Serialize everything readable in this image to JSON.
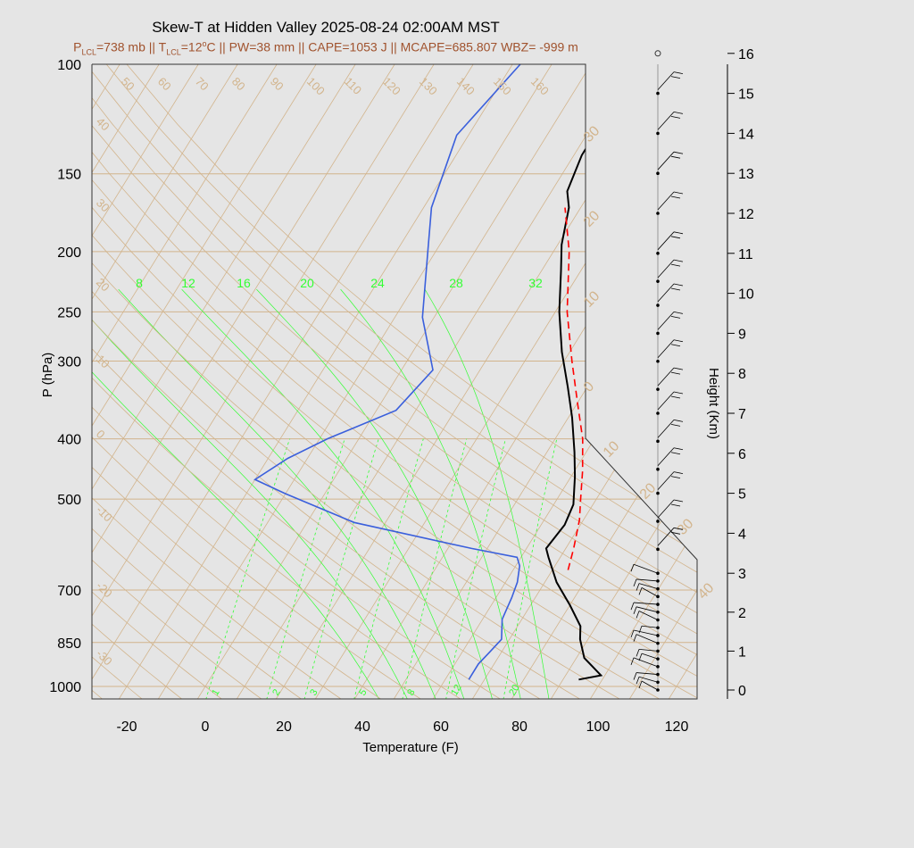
{
  "title": "Skew-T at Hidden Valley 2025-08-24 02:00AM MST",
  "subtitle": {
    "p_lcl_prefix": "P",
    "p_lcl_sub": "LCL",
    "p_lcl_val": "=738 mb || T",
    "t_lcl_sub": "LCL",
    "t_lcl_val": "=12",
    "t_lcl_sup": "o",
    "rest": "C || PW=38 mm || CAPE=1053 J || MCAPE=685.807 WBZ= -999 m"
  },
  "colors": {
    "temperature": "#000000",
    "dewpoint": "#3a5fdc",
    "parcel": "#ff0000",
    "isotherm": "#d2b48c",
    "mixing_ratio": "#33ff33",
    "background": "#e5e5e5"
  },
  "chart_data": {
    "type": "line",
    "chart_kind": "skew-t",
    "xlabel": "Temperature (F)",
    "ylabel": "P (hPa)",
    "y2label": "Height (Km)",
    "xlim": [
      -28,
      125
    ],
    "ylim": [
      1050,
      100
    ],
    "y_scale": "log",
    "x_ticks": [
      -20,
      0,
      20,
      40,
      60,
      80,
      100,
      120
    ],
    "x_tick_labels": [
      "-20",
      "0",
      "20",
      "40",
      "60",
      "80",
      "100",
      "120"
    ],
    "y_ticks": [
      100,
      150,
      200,
      250,
      300,
      400,
      500,
      700,
      850,
      1000
    ],
    "y_tick_labels": [
      "100",
      "150",
      "200",
      "250",
      "300",
      "400",
      "500",
      "700",
      "850",
      "1000"
    ],
    "height_ticks": [
      0,
      1,
      2,
      3,
      4,
      5,
      6,
      7,
      8,
      9,
      10,
      11,
      12,
      13,
      14,
      15,
      16
    ],
    "height_tick_labels": [
      "0",
      "1",
      "2",
      "3",
      "4",
      "5",
      "6",
      "7",
      "8",
      "9",
      "10",
      "11",
      "12",
      "13",
      "14",
      "15",
      "16"
    ],
    "isotherm_labels": [
      "50",
      "60",
      "70",
      "80",
      "90",
      "100",
      "110",
      "120",
      "130",
      "140",
      "150",
      "160"
    ],
    "isotherm_labels_left": [
      "40",
      "30",
      "20",
      "10",
      "0",
      "-10",
      "-20",
      "-30"
    ],
    "isotherm_labels_right": [
      "30",
      "20",
      "10",
      "0",
      "10",
      "20",
      "30",
      "40"
    ],
    "mixing_ratio_labels_top": [
      "8",
      "12",
      "16",
      "20",
      "24",
      "28",
      "32"
    ],
    "mixing_ratio_labels_bottom": [
      "1",
      "2",
      "3",
      "5",
      "8",
      "12",
      "20"
    ],
    "series": [
      {
        "name": "Temperature",
        "points": [
          [
            94,
            975
          ],
          [
            99,
            960
          ],
          [
            92,
            900
          ],
          [
            88,
            840
          ],
          [
            86,
            800
          ],
          [
            80,
            740
          ],
          [
            73,
            680
          ],
          [
            67,
            620
          ],
          [
            65,
            600
          ],
          [
            66,
            550
          ],
          [
            65,
            510
          ],
          [
            61,
            460
          ],
          [
            57,
            420
          ],
          [
            51,
            370
          ],
          [
            45,
            330
          ],
          [
            38,
            290
          ],
          [
            31,
            250
          ],
          [
            25,
            215
          ],
          [
            21,
            195
          ],
          [
            17,
            170
          ],
          [
            14,
            160
          ],
          [
            12,
            140
          ],
          [
            12,
            125
          ],
          [
            12,
            100
          ]
        ]
      },
      {
        "name": "Dewpoint",
        "points": [
          [
            66,
            975
          ],
          [
            66,
            960
          ],
          [
            66,
            920
          ],
          [
            67,
            880
          ],
          [
            68,
            840
          ],
          [
            65,
            780
          ],
          [
            64,
            720
          ],
          [
            63,
            680
          ],
          [
            61,
            640
          ],
          [
            59,
            620
          ],
          [
            46,
            600
          ],
          [
            12,
            545
          ],
          [
            -10,
            490
          ],
          [
            -20,
            465
          ],
          [
            -15,
            430
          ],
          [
            -8,
            400
          ],
          [
            5,
            360
          ],
          [
            8,
            310
          ],
          [
            -3,
            255
          ],
          [
            -12,
            200
          ],
          [
            -18,
            170
          ],
          [
            -23,
            130
          ],
          [
            -18,
            100
          ]
        ]
      },
      {
        "name": "Parcel",
        "points": [
          [
            74,
            650
          ],
          [
            72,
            600
          ],
          [
            69,
            540
          ],
          [
            66,
            500
          ],
          [
            62,
            450
          ],
          [
            57,
            400
          ],
          [
            50,
            350
          ],
          [
            42,
            300
          ],
          [
            33,
            250
          ],
          [
            24,
            200
          ],
          [
            16,
            170
          ]
        ]
      }
    ],
    "wind_barb_heights_km": [
      0.0,
      0.2,
      0.4,
      0.6,
      0.8,
      1.0,
      1.2,
      1.4,
      1.6,
      1.8,
      2.0,
      2.2,
      2.4,
      2.6,
      2.8,
      3.0,
      3.6,
      4.3,
      5.0,
      5.6,
      6.3,
      7.0,
      7.6,
      8.3,
      9.0,
      9.7,
      10.3,
      11.0,
      12.0,
      13.0,
      14.0,
      15.0,
      16.0
    ]
  }
}
